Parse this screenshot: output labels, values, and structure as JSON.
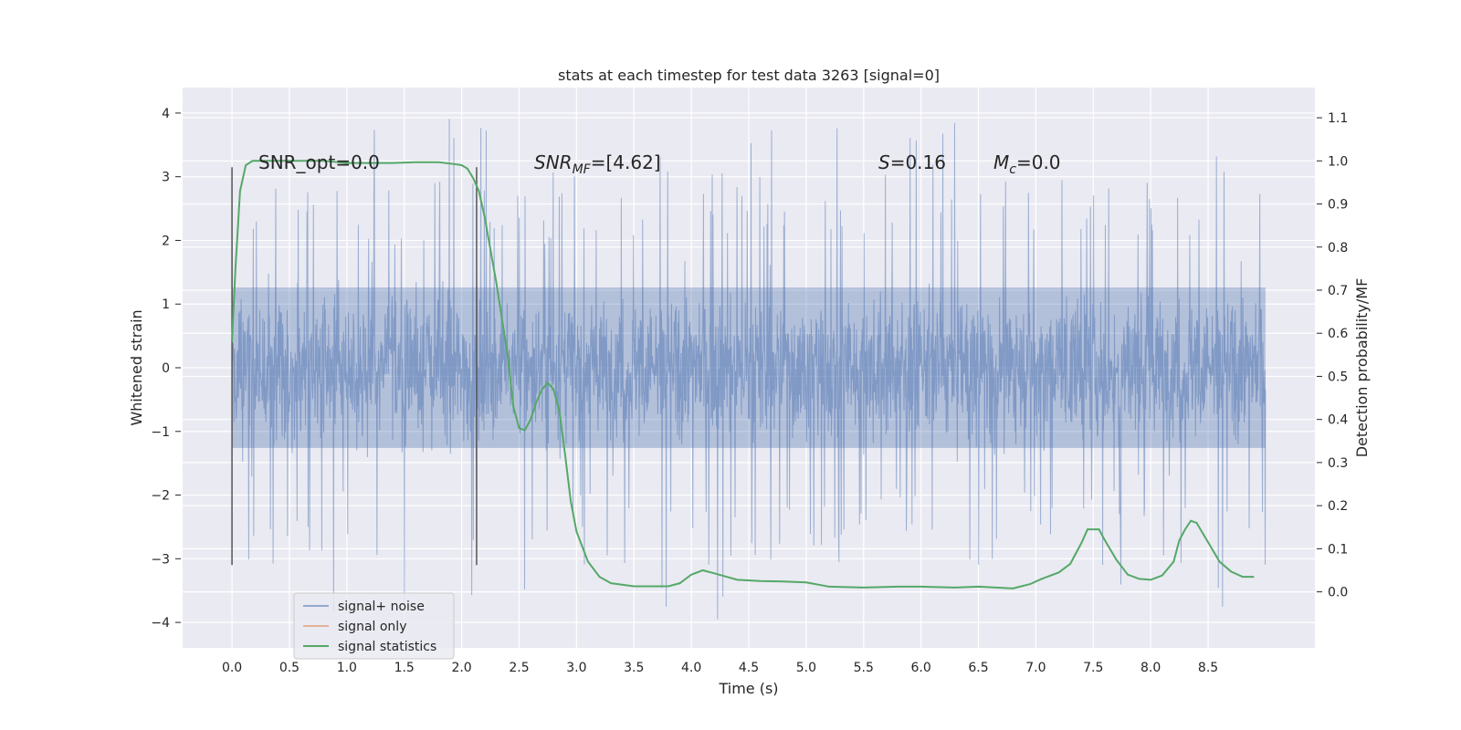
{
  "chart_data": {
    "type": "line",
    "title": "stats at each timestep for test data 3263 [signal=0]",
    "xlabel": "Time (s)",
    "ylabel": "Whitened strain",
    "y2label": "Detection probability/MF",
    "xlim": [
      -0.43,
      9.43
    ],
    "ylim": [
      -4.4,
      4.4
    ],
    "y2lim": [
      -0.13,
      1.17
    ],
    "xticks": [
      0.0,
      0.5,
      1.0,
      1.5,
      2.0,
      2.5,
      3.0,
      3.5,
      4.0,
      4.5,
      5.0,
      5.5,
      6.0,
      6.5,
      7.0,
      7.5,
      8.0,
      8.5
    ],
    "xtick_labels": [
      "0.0",
      "0.5",
      "1.0",
      "1.5",
      "2.0",
      "2.5",
      "3.0",
      "3.5",
      "4.0",
      "4.5",
      "5.0",
      "5.5",
      "6.0",
      "6.5",
      "7.0",
      "7.5",
      "8.0",
      "8.5"
    ],
    "yticks": [
      -4,
      -3,
      -2,
      -1,
      0,
      1,
      2,
      3,
      4
    ],
    "ytick_labels": [
      "−4",
      "−3",
      "−2",
      "−1",
      "0",
      "1",
      "2",
      "3",
      "4"
    ],
    "y2ticks": [
      0.0,
      0.1,
      0.2,
      0.3,
      0.4,
      0.5,
      0.6,
      0.7,
      0.8,
      0.9,
      1.0,
      1.1
    ],
    "y2tick_labels": [
      "0.0",
      "0.1",
      "0.2",
      "0.3",
      "0.4",
      "0.5",
      "0.6",
      "0.7",
      "0.8",
      "0.9",
      "1.0",
      "1.1"
    ],
    "grid": true,
    "legend_position": "lower-left",
    "noise_band": {
      "duration": 9.0,
      "typical_amplitude": 1.8,
      "max_amplitude": 4.0,
      "min_amplitude": -3.95
    },
    "vertical_lines": [
      {
        "x": 0.0,
        "y_range": [
          -3.1,
          3.15
        ]
      },
      {
        "x": 2.13,
        "y_range": [
          -3.1,
          3.15
        ]
      }
    ],
    "series": [
      {
        "name": "signal+ noise",
        "axis": "left",
        "color": "#4c72b0",
        "style": "noise-band"
      },
      {
        "name": "signal only",
        "axis": "left",
        "color": "#dd8452",
        "x": [],
        "y": []
      },
      {
        "name": "signal statistics",
        "axis": "right",
        "color": "#55a868",
        "x": [
          0.0,
          0.03,
          0.07,
          0.12,
          0.18,
          0.3,
          0.5,
          0.8,
          1.0,
          1.2,
          1.4,
          1.6,
          1.8,
          1.95,
          2.0,
          2.05,
          2.1,
          2.15,
          2.2,
          2.3,
          2.4,
          2.45,
          2.5,
          2.55,
          2.6,
          2.65,
          2.7,
          2.75,
          2.8,
          2.85,
          2.9,
          2.95,
          3.0,
          3.1,
          3.2,
          3.3,
          3.5,
          3.8,
          3.9,
          4.0,
          4.1,
          4.2,
          4.4,
          4.6,
          4.8,
          5.0,
          5.2,
          5.5,
          5.8,
          6.0,
          6.3,
          6.5,
          6.8,
          6.95,
          7.05,
          7.2,
          7.3,
          7.4,
          7.45,
          7.55,
          7.6,
          7.7,
          7.8,
          7.9,
          8.0,
          8.1,
          8.2,
          8.25,
          8.3,
          8.35,
          8.4,
          8.5,
          8.6,
          8.7,
          8.8,
          8.9
        ],
        "y": [
          0.58,
          0.75,
          0.93,
          0.99,
          1.0,
          1.0,
          1.0,
          1.0,
          0.995,
          0.995,
          0.995,
          0.997,
          0.997,
          0.992,
          0.99,
          0.982,
          0.96,
          0.93,
          0.87,
          0.72,
          0.55,
          0.43,
          0.38,
          0.375,
          0.4,
          0.44,
          0.47,
          0.485,
          0.47,
          0.42,
          0.32,
          0.21,
          0.14,
          0.07,
          0.035,
          0.02,
          0.013,
          0.013,
          0.02,
          0.04,
          0.05,
          0.043,
          0.028,
          0.025,
          0.024,
          0.022,
          0.012,
          0.01,
          0.012,
          0.012,
          0.01,
          0.012,
          0.008,
          0.018,
          0.03,
          0.045,
          0.065,
          0.115,
          0.145,
          0.145,
          0.12,
          0.075,
          0.04,
          0.03,
          0.028,
          0.038,
          0.07,
          0.12,
          0.145,
          0.165,
          0.16,
          0.115,
          0.07,
          0.047,
          0.035,
          0.035
        ]
      }
    ],
    "annotations": [
      {
        "parts": [
          {
            "t": "SNR_opt=0.0",
            "italic": false
          }
        ]
      },
      {
        "parts": [
          {
            "t": "SNR",
            "italic": true
          },
          {
            "t": "MF",
            "italic": true,
            "sub": true
          },
          {
            "t": "=[4.62]",
            "italic": false
          }
        ]
      },
      {
        "parts": [
          {
            "t": "S",
            "italic": true
          },
          {
            "t": "=0.16",
            "italic": false
          }
        ]
      },
      {
        "parts": [
          {
            "t": "M",
            "italic": true
          },
          {
            "t": "c",
            "italic": true,
            "sub": true
          },
          {
            "t": "=0.0",
            "italic": false
          }
        ]
      }
    ]
  }
}
